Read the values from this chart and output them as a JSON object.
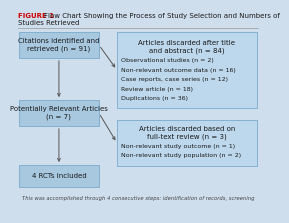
{
  "title_bold": "FIGURE 1",
  "title_rest": "  Flow Chart Showing the Process of Study Selection and Numbers of",
  "title_line2": "Studies Retrieved",
  "bg_color": "#cfdeed",
  "box_fill": "#a8c8e0",
  "box_edge": "#7aabcc",
  "right_box_fill": "#bdd8ec",
  "right_box_edge": "#7aabcc",
  "box1_text": "Citations identified and\nretrieved (n = 91)",
  "box2_text": "Potentially Relevant Articles\n(n = 7)",
  "box3_text": "4 RCTs included",
  "right_box1_title": "Articles discarded after title\nand abstract (n = 84)",
  "right_box1_lines": [
    "Observational studies (n = 2)",
    "Non-relevant outcome data (n = 16)",
    "Case reports, case series (n = 12)",
    "Review article (n = 18)",
    "Duplications (n = 36)"
  ],
  "right_box2_title": "Articles discarded based on\nfull-text review (n = 3)",
  "right_box2_lines": [
    "Non-relevant study outcome (n = 1)",
    "Non-relevant study population (n = 2)"
  ],
  "footer_text": "This was accomplished through 4 consecutive steps: identification of records, screening",
  "arrow_color": "#555555",
  "text_color": "#1a1a1a",
  "title_color_bold": "#cc0000"
}
